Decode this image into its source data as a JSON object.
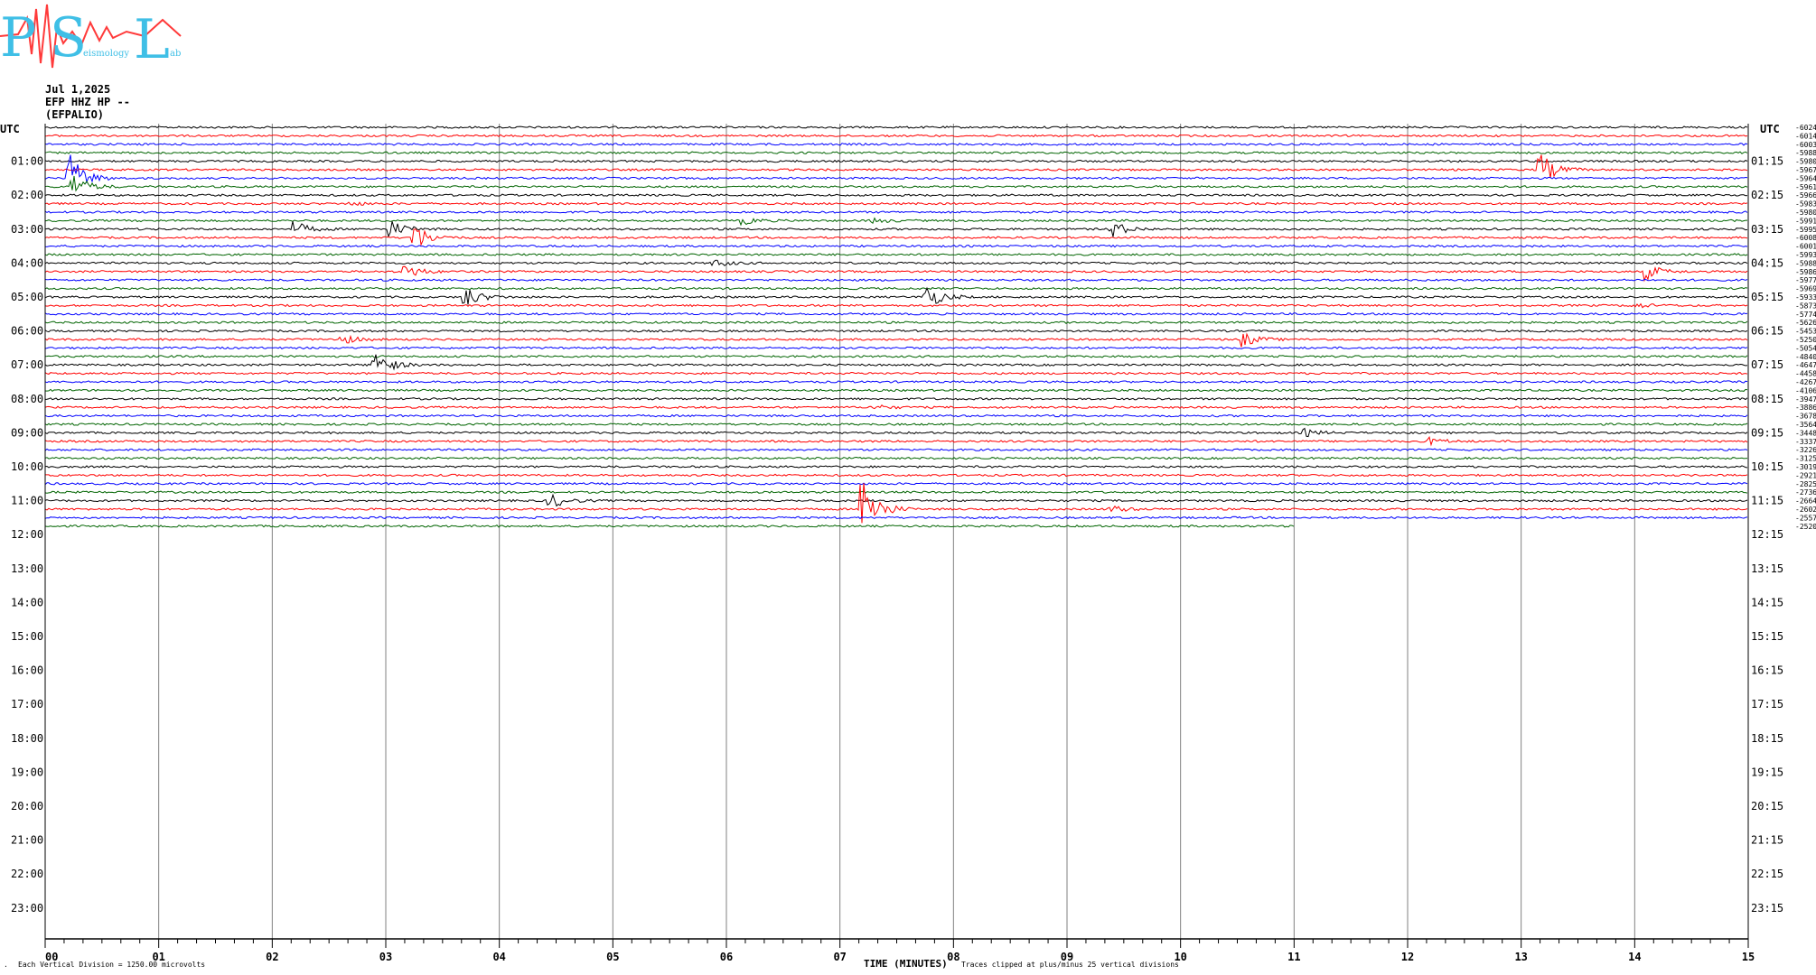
{
  "logo": {
    "letters": [
      "P",
      "S",
      "L"
    ],
    "word": "eismology",
    "suffix": "ab"
  },
  "header": {
    "date": "Jul 1,2025",
    "channel": "EFP HHZ HP --",
    "station": "(EFPALIO)"
  },
  "utc_left": "UTC",
  "utc_right": "UTC",
  "left_hours": [
    "01:00",
    "02:00",
    "03:00",
    "04:00",
    "05:00",
    "06:00",
    "07:00",
    "08:00",
    "09:00",
    "10:00",
    "11:00",
    "12:00",
    "13:00",
    "14:00",
    "15:00",
    "16:00",
    "17:00",
    "18:00",
    "19:00",
    "20:00",
    "21:00",
    "22:00",
    "23:00"
  ],
  "right_hours": [
    "01:15",
    "02:15",
    "03:15",
    "04:15",
    "05:15",
    "06:15",
    "07:15",
    "08:15",
    "09:15",
    "10:15",
    "11:15",
    "12:15",
    "13:15",
    "14:15",
    "15:15",
    "16:15",
    "17:15",
    "18:15",
    "19:15",
    "20:15",
    "21:15",
    "22:15",
    "23:15"
  ],
  "footer": {
    "scale": "Each Vertical Division = 1250.00 microvolts",
    "xlabel": "TIME (MINUTES)",
    "clip": "Traces clipped at plus/minus 25 vertical divisions"
  },
  "chart_data": {
    "type": "line",
    "xlabel": "TIME (MINUTES)",
    "xlim": [
      0,
      15
    ],
    "x_ticks": [
      "00",
      "01",
      "02",
      "03",
      "04",
      "05",
      "06",
      "07",
      "08",
      "09",
      "10",
      "11",
      "12",
      "13",
      "14",
      "15"
    ],
    "minutes_per_line": 15,
    "lines_recorded": 48,
    "last_line_end_minute": 11,
    "trace_color_cycle": [
      "#000000",
      "#ff0000",
      "#0000ff",
      "#006400"
    ],
    "line_values": [
      -6024,
      -6014,
      -6003,
      -5988,
      -5980,
      -5967,
      -5964,
      -5961,
      -5966,
      -5983,
      -5980,
      -5991,
      -5995,
      -6008,
      -6001,
      -5993,
      -5988,
      -5986,
      -5977,
      -5969,
      -5933,
      -5873,
      -5774,
      -5626,
      -5453,
      -5250,
      -5054,
      -4840,
      -4647,
      -4458,
      -4267,
      -4106,
      -3947,
      -3886,
      -3678,
      -3564,
      -3448,
      -3337,
      -3226,
      -3125,
      -3019,
      -2921,
      -2825,
      -2736,
      -2664,
      -2602,
      -2557,
      -2520
    ],
    "events": [
      {
        "line": 5,
        "minute": 13.15,
        "amp": 22
      },
      {
        "line": 6,
        "minute": 0.22,
        "amp": 26
      },
      {
        "line": 7,
        "minute": 0.25,
        "amp": 14
      },
      {
        "line": 9,
        "minute": 2.7,
        "amp": 2
      },
      {
        "line": 11,
        "minute": 6.15,
        "amp": 4
      },
      {
        "line": 11,
        "minute": 7.3,
        "amp": 3
      },
      {
        "line": 12,
        "minute": 2.2,
        "amp": 8
      },
      {
        "line": 12,
        "minute": 3.05,
        "amp": 9
      },
      {
        "line": 12,
        "minute": 9.4,
        "amp": 9
      },
      {
        "line": 13,
        "minute": 3.25,
        "amp": 16
      },
      {
        "line": 16,
        "minute": 5.9,
        "amp": 4
      },
      {
        "line": 17,
        "minute": 3.18,
        "amp": 8
      },
      {
        "line": 17,
        "minute": 14.1,
        "amp": 9
      },
      {
        "line": 20,
        "minute": 3.7,
        "amp": 12
      },
      {
        "line": 20,
        "minute": 7.75,
        "amp": 16
      },
      {
        "line": 21,
        "minute": 14.0,
        "amp": 3
      },
      {
        "line": 25,
        "minute": 2.6,
        "amp": 6
      },
      {
        "line": 25,
        "minute": 10.55,
        "amp": 8
      },
      {
        "line": 28,
        "minute": 2.9,
        "amp": 18
      },
      {
        "line": 33,
        "minute": 7.3,
        "amp": 3
      },
      {
        "line": 36,
        "minute": 11.1,
        "amp": 4
      },
      {
        "line": 37,
        "minute": 12.2,
        "amp": 4
      },
      {
        "line": 44,
        "minute": 4.45,
        "amp": 9
      },
      {
        "line": 45,
        "minute": 7.2,
        "amp": 40
      },
      {
        "line": 45,
        "minute": 9.4,
        "amp": 4
      }
    ]
  },
  "colors": {
    "logo_blue": "#3fbfe6",
    "logo_red": "#ff3a3a",
    "grid": "#808080"
  }
}
